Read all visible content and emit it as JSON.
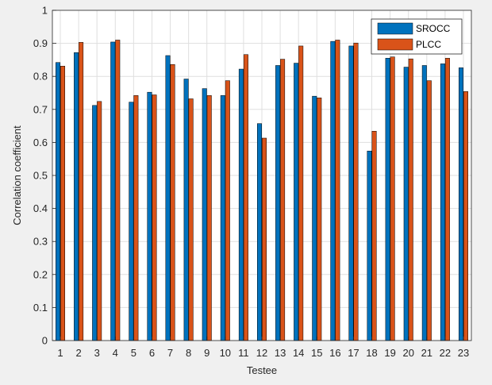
{
  "chart_data": {
    "type": "bar",
    "categories": [
      "1",
      "2",
      "3",
      "4",
      "5",
      "6",
      "7",
      "8",
      "9",
      "10",
      "11",
      "12",
      "13",
      "14",
      "15",
      "16",
      "17",
      "18",
      "19",
      "20",
      "21",
      "22",
      "23"
    ],
    "series": [
      {
        "name": "SROCC",
        "color": "#0072bd",
        "values": [
          0.842,
          0.872,
          0.712,
          0.904,
          0.722,
          0.752,
          0.863,
          0.792,
          0.763,
          0.742,
          0.822,
          0.657,
          0.833,
          0.84,
          0.74,
          0.906,
          0.892,
          0.574,
          0.855,
          0.828,
          0.833,
          0.838,
          0.826
        ]
      },
      {
        "name": "PLCC",
        "color": "#d95319",
        "values": [
          0.831,
          0.903,
          0.724,
          0.91,
          0.742,
          0.744,
          0.836,
          0.732,
          0.742,
          0.787,
          0.866,
          0.613,
          0.852,
          0.892,
          0.735,
          0.91,
          0.901,
          0.634,
          0.859,
          0.853,
          0.787,
          0.855,
          0.754
        ]
      }
    ],
    "xlabel": "Testee",
    "ylabel": "Correlation coefficient",
    "ylim": [
      0,
      1
    ],
    "yticks": [
      "0",
      "0.1",
      "0.2",
      "0.3",
      "0.4",
      "0.5",
      "0.6",
      "0.7",
      "0.8",
      "0.9",
      "1"
    ],
    "grid": true,
    "legend_position": "top-right"
  }
}
